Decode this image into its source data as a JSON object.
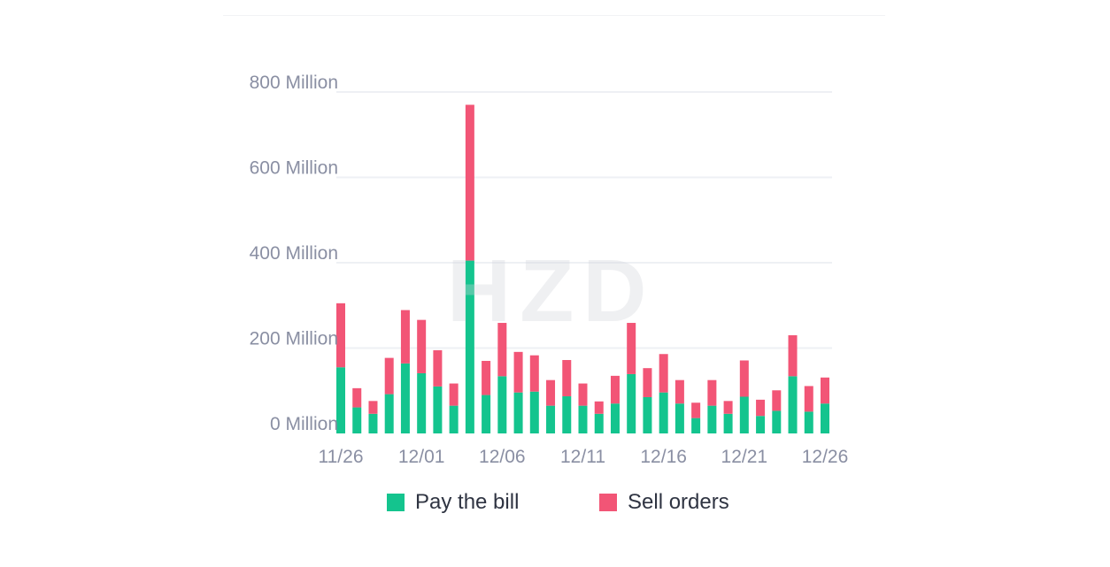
{
  "chart_data": {
    "type": "bar",
    "stacked": true,
    "categories": [
      "11/26",
      "11/27",
      "11/28",
      "11/29",
      "11/30",
      "12/01",
      "12/02",
      "12/03",
      "12/04",
      "12/05",
      "12/06",
      "12/07",
      "12/08",
      "12/09",
      "12/10",
      "12/11",
      "12/12",
      "12/13",
      "12/14",
      "12/15",
      "12/16",
      "12/17",
      "12/18",
      "12/19",
      "12/20",
      "12/21",
      "12/22",
      "12/23",
      "12/24",
      "12/25",
      "12/26"
    ],
    "x_tick_labels": [
      "11/26",
      "12/01",
      "12/06",
      "12/11",
      "12/16",
      "12/21",
      "12/26"
    ],
    "x_tick_every": 5,
    "y_ticks": [
      0,
      200,
      400,
      600,
      800
    ],
    "y_tick_suffix": " Million",
    "ylim": [
      0,
      800
    ],
    "grid": true,
    "legend_position": "bottom",
    "series": [
      {
        "name": "Pay the bill",
        "color": "#14c48e",
        "values": [
          155,
          61,
          46,
          92,
          164,
          141,
          110,
          65,
          405,
          90,
          134,
          96,
          98,
          65,
          87,
          65,
          46,
          70,
          139,
          85,
          96,
          70,
          36,
          65,
          46,
          86,
          41,
          53,
          134,
          51,
          70
        ]
      },
      {
        "name": "Sell orders",
        "color": "#f25576",
        "values": [
          150,
          45,
          30,
          85,
          125,
          125,
          85,
          52,
          365,
          80,
          125,
          95,
          85,
          60,
          85,
          52,
          29,
          65,
          120,
          68,
          90,
          55,
          36,
          60,
          30,
          85,
          38,
          48,
          96,
          60,
          61
        ]
      }
    ],
    "title": "",
    "xlabel": "",
    "ylabel": ""
  },
  "watermark": "HZD",
  "legend": [
    {
      "label": "Pay the bill",
      "color": "#14c48e"
    },
    {
      "label": "Sell orders",
      "color": "#f25576"
    }
  ]
}
